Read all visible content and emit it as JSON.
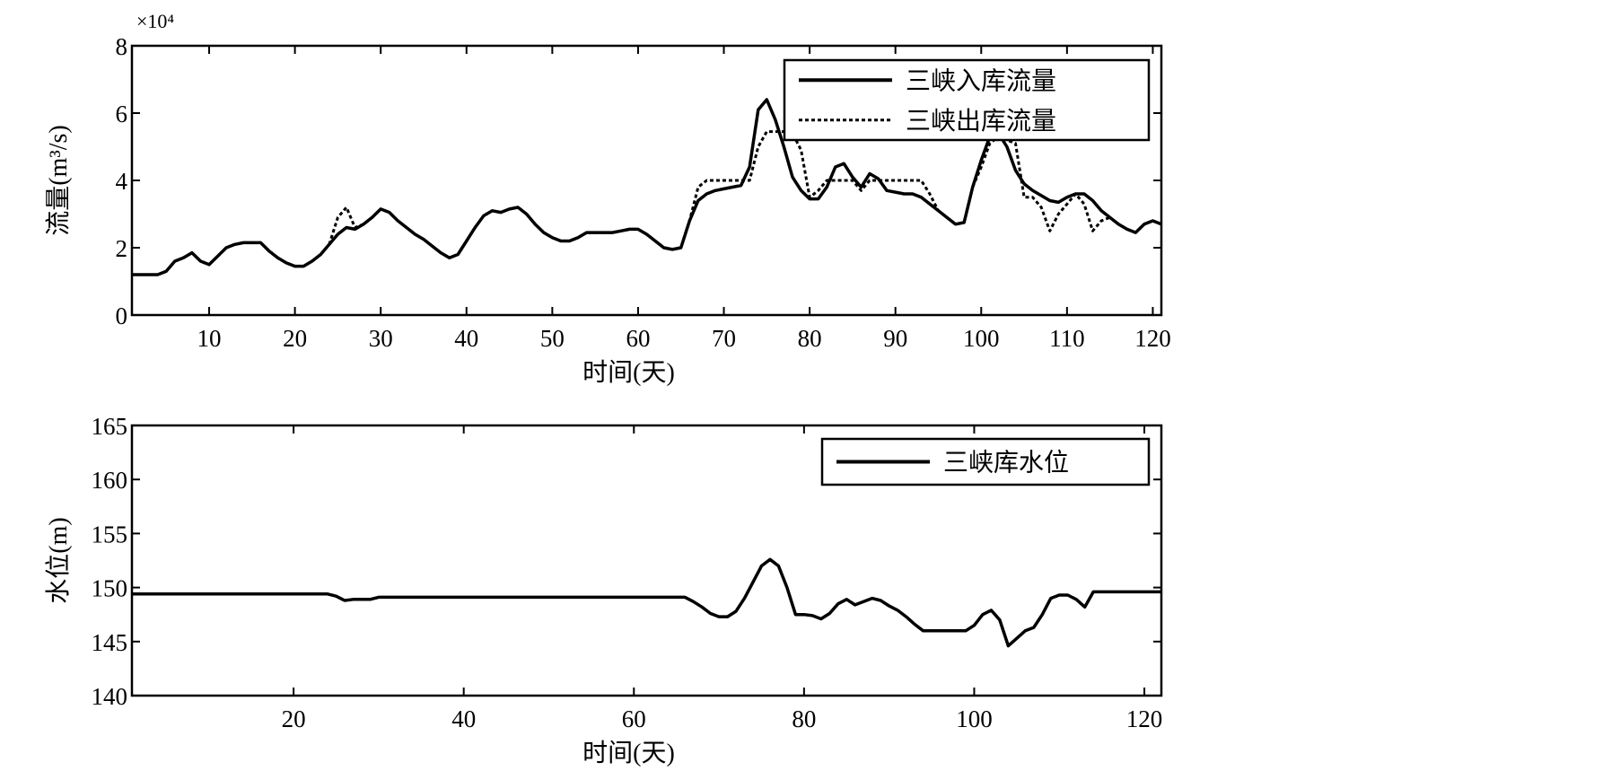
{
  "chart_data": [
    {
      "type": "line",
      "xlabel": "时间(天)",
      "ylabel": "流量(m³/s)",
      "y_multiplier": "×10⁴",
      "xlim": [
        1,
        121
      ],
      "ylim": [
        0,
        8
      ],
      "xticks": [
        10,
        20,
        30,
        40,
        50,
        60,
        70,
        80,
        90,
        100,
        110,
        120
      ],
      "yticks": [
        0,
        2,
        4,
        6,
        8
      ],
      "grid": false,
      "legend_position": "top-right",
      "x_start": 1,
      "series": [
        {
          "name": "三峡入库流量",
          "style": "solid",
          "color": "#000000",
          "values": [
            1.2,
            1.2,
            1.2,
            1.2,
            1.3,
            1.6,
            1.7,
            1.85,
            1.6,
            1.5,
            1.75,
            2.0,
            2.1,
            2.15,
            2.15,
            2.15,
            1.9,
            1.7,
            1.55,
            1.45,
            1.45,
            1.6,
            1.8,
            2.1,
            2.4,
            2.6,
            2.55,
            2.7,
            2.9,
            3.15,
            3.05,
            2.8,
            2.6,
            2.4,
            2.25,
            2.05,
            1.85,
            1.7,
            1.8,
            2.2,
            2.6,
            2.95,
            3.1,
            3.05,
            3.15,
            3.2,
            3.0,
            2.7,
            2.45,
            2.3,
            2.2,
            2.2,
            2.3,
            2.45,
            2.45,
            2.45,
            2.45,
            2.5,
            2.55,
            2.55,
            2.4,
            2.2,
            2.0,
            1.95,
            2.0,
            2.8,
            3.4,
            3.6,
            3.7,
            3.75,
            3.8,
            3.85,
            4.4,
            6.1,
            6.4,
            5.8,
            5.0,
            4.1,
            3.7,
            3.45,
            3.45,
            3.8,
            4.4,
            4.5,
            4.1,
            3.8,
            4.2,
            4.05,
            3.7,
            3.65,
            3.6,
            3.6,
            3.5,
            3.3,
            3.1,
            2.9,
            2.7,
            2.75,
            3.8,
            4.6,
            5.3,
            5.4,
            5.0,
            4.3,
            3.9,
            3.7,
            3.55,
            3.4,
            3.35,
            3.5,
            3.6,
            3.6,
            3.4,
            3.1,
            2.9,
            2.7,
            2.55,
            2.45,
            2.7,
            2.8,
            2.7
          ]
        },
        {
          "name": "三峡出库流量",
          "style": "dotted",
          "color": "#000000",
          "values": [
            1.2,
            1.2,
            1.2,
            1.2,
            1.3,
            1.6,
            1.7,
            1.85,
            1.6,
            1.5,
            1.75,
            2.0,
            2.1,
            2.15,
            2.15,
            2.15,
            1.9,
            1.7,
            1.55,
            1.45,
            1.45,
            1.6,
            1.8,
            2.1,
            2.9,
            3.2,
            2.6,
            2.7,
            2.9,
            3.15,
            3.05,
            2.8,
            2.6,
            2.4,
            2.25,
            2.05,
            1.85,
            1.7,
            1.8,
            2.2,
            2.6,
            2.95,
            3.1,
            3.05,
            3.15,
            3.2,
            3.0,
            2.7,
            2.45,
            2.3,
            2.2,
            2.2,
            2.3,
            2.45,
            2.45,
            2.45,
            2.45,
            2.5,
            2.55,
            2.55,
            2.4,
            2.2,
            2.0,
            1.95,
            2.0,
            2.8,
            3.8,
            4.0,
            4.0,
            4.0,
            4.0,
            4.0,
            4.0,
            5.0,
            5.45,
            5.45,
            5.45,
            5.4,
            4.9,
            3.5,
            3.7,
            4.0,
            4.0,
            4.0,
            4.0,
            3.7,
            4.0,
            4.0,
            4.0,
            4.0,
            4.0,
            4.0,
            4.0,
            3.6,
            3.1,
            2.9,
            2.7,
            2.75,
            3.8,
            4.4,
            5.1,
            5.3,
            5.2,
            5.1,
            3.5,
            3.5,
            3.2,
            2.5,
            3.0,
            3.3,
            3.6,
            3.3,
            2.5,
            2.8,
            2.9,
            2.7,
            2.55,
            2.45,
            2.7,
            2.8,
            2.7
          ]
        }
      ]
    },
    {
      "type": "line",
      "xlabel": "时间(天)",
      "ylabel": "水位(m)",
      "xlim": [
        1,
        122
      ],
      "ylim": [
        140,
        165
      ],
      "xticks": [
        20,
        40,
        60,
        80,
        100,
        120
      ],
      "yticks": [
        140,
        145,
        150,
        155,
        160,
        165
      ],
      "grid": false,
      "legend_position": "top-right",
      "x_start": 1,
      "series": [
        {
          "name": "三峡库水位",
          "style": "solid",
          "color": "#000000",
          "values": [
            149.4,
            149.4,
            149.4,
            149.4,
            149.4,
            149.4,
            149.4,
            149.4,
            149.4,
            149.4,
            149.4,
            149.4,
            149.4,
            149.4,
            149.4,
            149.4,
            149.4,
            149.4,
            149.4,
            149.4,
            149.4,
            149.4,
            149.4,
            149.4,
            149.2,
            148.8,
            148.9,
            148.9,
            148.9,
            149.1,
            149.1,
            149.1,
            149.1,
            149.1,
            149.1,
            149.1,
            149.1,
            149.1,
            149.1,
            149.1,
            149.1,
            149.1,
            149.1,
            149.1,
            149.1,
            149.1,
            149.1,
            149.1,
            149.1,
            149.1,
            149.1,
            149.1,
            149.1,
            149.1,
            149.1,
            149.1,
            149.1,
            149.1,
            149.1,
            149.1,
            149.1,
            149.1,
            149.1,
            149.1,
            149.1,
            149.1,
            148.7,
            148.2,
            147.6,
            147.3,
            147.3,
            147.8,
            149.0,
            150.5,
            152.0,
            152.6,
            152.0,
            150.0,
            147.5,
            147.5,
            147.4,
            147.1,
            147.6,
            148.5,
            148.9,
            148.4,
            148.7,
            149.0,
            148.8,
            148.3,
            147.9,
            147.3,
            146.6,
            146.0,
            146.0,
            146.0,
            146.0,
            146.0,
            146.0,
            146.5,
            147.5,
            147.9,
            147.0,
            144.6,
            145.3,
            146.0,
            146.3,
            147.5,
            149.0,
            149.3,
            149.3,
            148.9,
            148.2,
            149.6,
            149.6,
            149.6,
            149.6,
            149.6,
            149.6,
            149.6,
            149.6,
            149.6
          ]
        }
      ]
    }
  ]
}
